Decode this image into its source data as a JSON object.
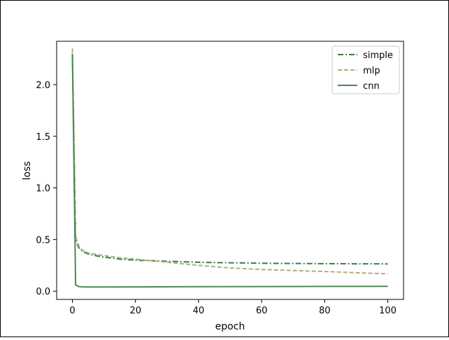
{
  "chart_data": {
    "type": "line",
    "xlabel": "epoch",
    "ylabel": "loss",
    "xlim": [
      -5,
      105
    ],
    "ylim": [
      -0.08,
      2.42
    ],
    "x_ticks": [
      0,
      20,
      40,
      60,
      80,
      100
    ],
    "y_ticks": [
      0.0,
      0.5,
      1.0,
      1.5,
      2.0
    ],
    "x_tick_labels": [
      "0",
      "20",
      "40",
      "60",
      "80",
      "100"
    ],
    "y_tick_labels": [
      "0.0",
      "0.5",
      "1.0",
      "1.5",
      "2.0"
    ],
    "grid": false,
    "legend_position": "top-right",
    "series": [
      {
        "name": "simple",
        "color": "#3a7d44",
        "style": "dashdot",
        "x": [
          0,
          1,
          2,
          3,
          5,
          8,
          10,
          15,
          20,
          30,
          40,
          50,
          60,
          70,
          80,
          90,
          100
        ],
        "y": [
          2.3,
          0.5,
          0.42,
          0.39,
          0.36,
          0.34,
          0.33,
          0.31,
          0.3,
          0.29,
          0.28,
          0.275,
          0.27,
          0.268,
          0.266,
          0.265,
          0.264
        ]
      },
      {
        "name": "mlp",
        "color": "#a8b27a",
        "style": "dashed",
        "x": [
          0,
          1,
          2,
          3,
          5,
          8,
          10,
          15,
          20,
          30,
          40,
          50,
          60,
          70,
          80,
          90,
          100
        ],
        "y": [
          2.35,
          0.53,
          0.44,
          0.4,
          0.37,
          0.355,
          0.345,
          0.325,
          0.31,
          0.28,
          0.25,
          0.225,
          0.21,
          0.2,
          0.19,
          0.178,
          0.168
        ]
      },
      {
        "name": "cnn",
        "color": "#4a8a50",
        "style": "solid",
        "x": [
          0,
          1,
          2,
          3,
          5,
          10,
          20,
          40,
          60,
          80,
          100
        ],
        "y": [
          2.3,
          0.06,
          0.045,
          0.042,
          0.04,
          0.04,
          0.041,
          0.043,
          0.045,
          0.046,
          0.047
        ]
      }
    ]
  }
}
